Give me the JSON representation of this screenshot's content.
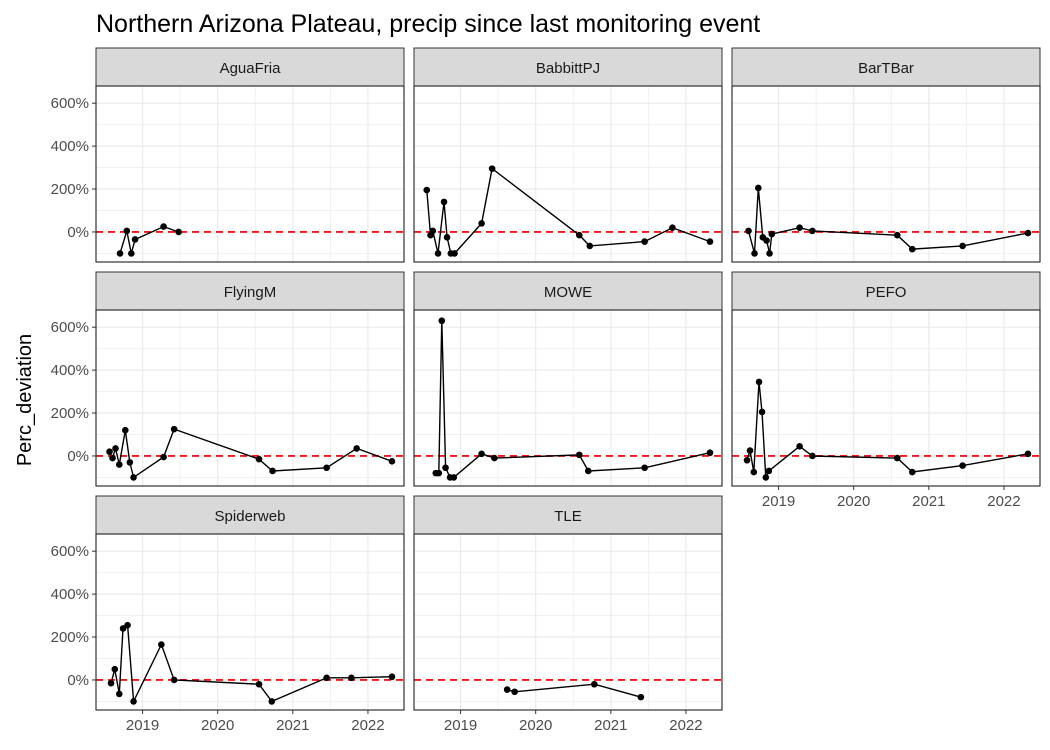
{
  "chart_data": {
    "type": "line",
    "title": "Northern Arizona Plateau, precip since last monitoring event",
    "xlabel": "",
    "ylabel": "Perc_deviation",
    "xlim": [
      2018.38,
      2022.48
    ],
    "ylim": [
      -140,
      680
    ],
    "x_ticks": [
      2019,
      2020,
      2021,
      2022
    ],
    "x_tick_labels": [
      "2019",
      "2020",
      "2021",
      "2022"
    ],
    "y_ticks": [
      0,
      200,
      400,
      600
    ],
    "y_tick_labels": [
      "0%",
      "200%",
      "400%",
      "600%"
    ],
    "reference_line": {
      "y": 0,
      "color": "#e41a1c",
      "style": "dashed"
    },
    "theme": "bw",
    "grid": true,
    "layout": {
      "ncol": 3,
      "nrow": 3
    },
    "panels": [
      {
        "name": "AguaFria",
        "x": [
          2018.7,
          2018.79,
          2018.85,
          2018.9,
          2019.28,
          2019.48
        ],
        "y": [
          -100,
          5,
          -100,
          -35,
          25,
          0
        ]
      },
      {
        "name": "BabbittPJ",
        "x": [
          2018.55,
          2018.6,
          2018.63,
          2018.7,
          2018.78,
          2018.82,
          2018.87,
          2018.92,
          2019.28,
          2019.42,
          2020.58,
          2020.72,
          2021.45,
          2021.82,
          2022.32
        ],
        "y": [
          195,
          -15,
          5,
          -100,
          140,
          -25,
          -100,
          -100,
          40,
          295,
          -15,
          -65,
          -45,
          20,
          -45
        ]
      },
      {
        "name": "BarTBar",
        "x": [
          2018.6,
          2018.68,
          2018.73,
          2018.79,
          2018.84,
          2018.88,
          2018.91,
          2019.28,
          2019.45,
          2020.58,
          2020.78,
          2021.45,
          2022.32
        ],
        "y": [
          5,
          -100,
          205,
          -25,
          -40,
          -100,
          -10,
          20,
          5,
          -15,
          -80,
          -65,
          -5
        ]
      },
      {
        "name": "FlyingM",
        "x": [
          2018.56,
          2018.6,
          2018.64,
          2018.69,
          2018.77,
          2018.83,
          2018.88,
          2019.28,
          2019.42,
          2020.55,
          2020.73,
          2021.45,
          2021.85,
          2022.32
        ],
        "y": [
          20,
          -10,
          35,
          -40,
          120,
          -30,
          -100,
          -5,
          125,
          -15,
          -70,
          -55,
          35,
          -25
        ]
      },
      {
        "name": "MOWE",
        "x": [
          2018.67,
          2018.71,
          2018.75,
          2018.8,
          2018.86,
          2018.91,
          2019.28,
          2019.45,
          2020.58,
          2020.7,
          2021.45,
          2022.32
        ],
        "y": [
          -80,
          -80,
          630,
          -55,
          -100,
          -100,
          10,
          -10,
          5,
          -70,
          -55,
          15
        ]
      },
      {
        "name": "PEFO",
        "x": [
          2018.58,
          2018.62,
          2018.67,
          2018.74,
          2018.78,
          2018.83,
          2018.87,
          2019.28,
          2019.45,
          2020.58,
          2020.78,
          2021.45,
          2022.32
        ],
        "y": [
          -20,
          25,
          -75,
          345,
          205,
          -100,
          -70,
          45,
          0,
          -10,
          -75,
          -45,
          10
        ]
      },
      {
        "name": "Spiderweb",
        "x": [
          2018.58,
          2018.63,
          2018.69,
          2018.74,
          2018.8,
          2018.88,
          2019.25,
          2019.42,
          2020.55,
          2020.72,
          2021.45,
          2021.78,
          2022.32
        ],
        "y": [
          -15,
          50,
          -65,
          240,
          255,
          -100,
          165,
          0,
          -20,
          -100,
          10,
          10,
          15
        ]
      },
      {
        "name": "TLE",
        "x": [
          2019.62,
          2019.72,
          2020.78,
          2021.4
        ],
        "y": [
          -45,
          -55,
          -20,
          -80
        ]
      }
    ]
  }
}
